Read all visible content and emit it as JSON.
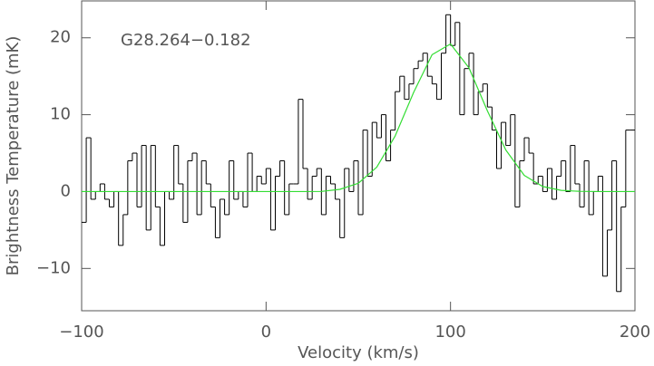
{
  "chart_data": {
    "type": "histogram",
    "annotation": "G28.264−0.182",
    "xlabel": "Velocity (km/s)",
    "ylabel": "Brightness Temperature (mK)",
    "xlim": [
      -100,
      200
    ],
    "ylim": [
      -15.5,
      24.8
    ],
    "xticks": [
      {
        "value": -100,
        "label": "−100"
      },
      0,
      100,
      200
    ],
    "yticks": [
      {
        "value": -10,
        "label": "−10"
      },
      0,
      10,
      20
    ],
    "bins": [
      -100,
      -97.5,
      -95,
      -92.5,
      -90,
      -87.5,
      -85,
      -82.5,
      -80,
      -77.5,
      -75,
      -72.5,
      -70,
      -67.5,
      -65,
      -62.5,
      -60,
      -57.5,
      -55,
      -52.5,
      -50,
      -47.5,
      -45,
      -42.5,
      -40,
      -37.5,
      -35,
      -32.5,
      -30,
      -27.5,
      -25,
      -22.5,
      -20,
      -17.5,
      -15,
      -12.5,
      -10,
      -7.5,
      -5,
      -2.5,
      0,
      2.5,
      5,
      7.5,
      10,
      12.5,
      15,
      17.5,
      20,
      22.5,
      25,
      27.5,
      30,
      32.5,
      35,
      37.5,
      40,
      42.5,
      45,
      47.5,
      50,
      52.5,
      55,
      57.5,
      60,
      62.5,
      65,
      67.5,
      70,
      72.5,
      75,
      77.5,
      80,
      82.5,
      85,
      87.5,
      90,
      92.5,
      95,
      97.5,
      100,
      102.5,
      105,
      107.5,
      110,
      112.5,
      115,
      117.5,
      120,
      122.5,
      125,
      127.5,
      130,
      132.5,
      135,
      137.5,
      140,
      142.5,
      145,
      147.5,
      150,
      152.5,
      155,
      157.5,
      160,
      162.5,
      165,
      167.5,
      170,
      172.5,
      175,
      177.5,
      180,
      182.5,
      185,
      187.5,
      190,
      192.5,
      195,
      197.5,
      200
    ],
    "series": [
      {
        "color": "#000000",
        "values": [
          -4,
          7,
          -1,
          0,
          1,
          -1,
          -2,
          0,
          -7,
          -3,
          4,
          5,
          -2,
          6,
          -5,
          6,
          -2,
          -7,
          0,
          -1,
          6,
          1,
          -4,
          4,
          5,
          -3,
          4,
          1,
          -2,
          -6,
          -1,
          -3,
          4,
          -1,
          0,
          -2,
          5,
          0,
          2,
          1,
          3,
          -5,
          2,
          4,
          -3,
          1,
          1,
          12,
          3,
          -1,
          2,
          3,
          -3,
          2,
          1,
          -1,
          -6,
          3,
          0,
          4,
          -3,
          8,
          2,
          9,
          7,
          10,
          4,
          8,
          13,
          15,
          12,
          14,
          16,
          17,
          18,
          15,
          14,
          12,
          18,
          23,
          19,
          22,
          10,
          16,
          18,
          10,
          13,
          14,
          11,
          8,
          3,
          9,
          6,
          10,
          -2,
          4,
          7,
          5,
          1,
          2,
          0,
          3,
          -1,
          2,
          4,
          0,
          6,
          1,
          -2,
          4,
          -3,
          0,
          2,
          -11,
          -5,
          4,
          -13,
          -2,
          8,
          8
        ]
      },
      {
        "color": "#33dd33",
        "x": [
          -100,
          -90,
          -80,
          -70,
          -60,
          -50,
          -40,
          -30,
          -20,
          -10,
          0,
          10,
          20,
          30,
          40,
          50,
          60,
          70,
          80,
          90,
          100,
          110,
          120,
          130,
          140,
          150,
          160,
          170,
          180,
          190,
          200
        ],
        "values": [
          0,
          0,
          0,
          0,
          0,
          0,
          0,
          0,
          0,
          0,
          0,
          0,
          0,
          0.02,
          0.29,
          1.08,
          3.17,
          7.24,
          12.9,
          17.8,
          19.2,
          16.1,
          10.5,
          5.4,
          2.1,
          0.66,
          0.16,
          0.03,
          0,
          0,
          0
        ]
      }
    ]
  }
}
